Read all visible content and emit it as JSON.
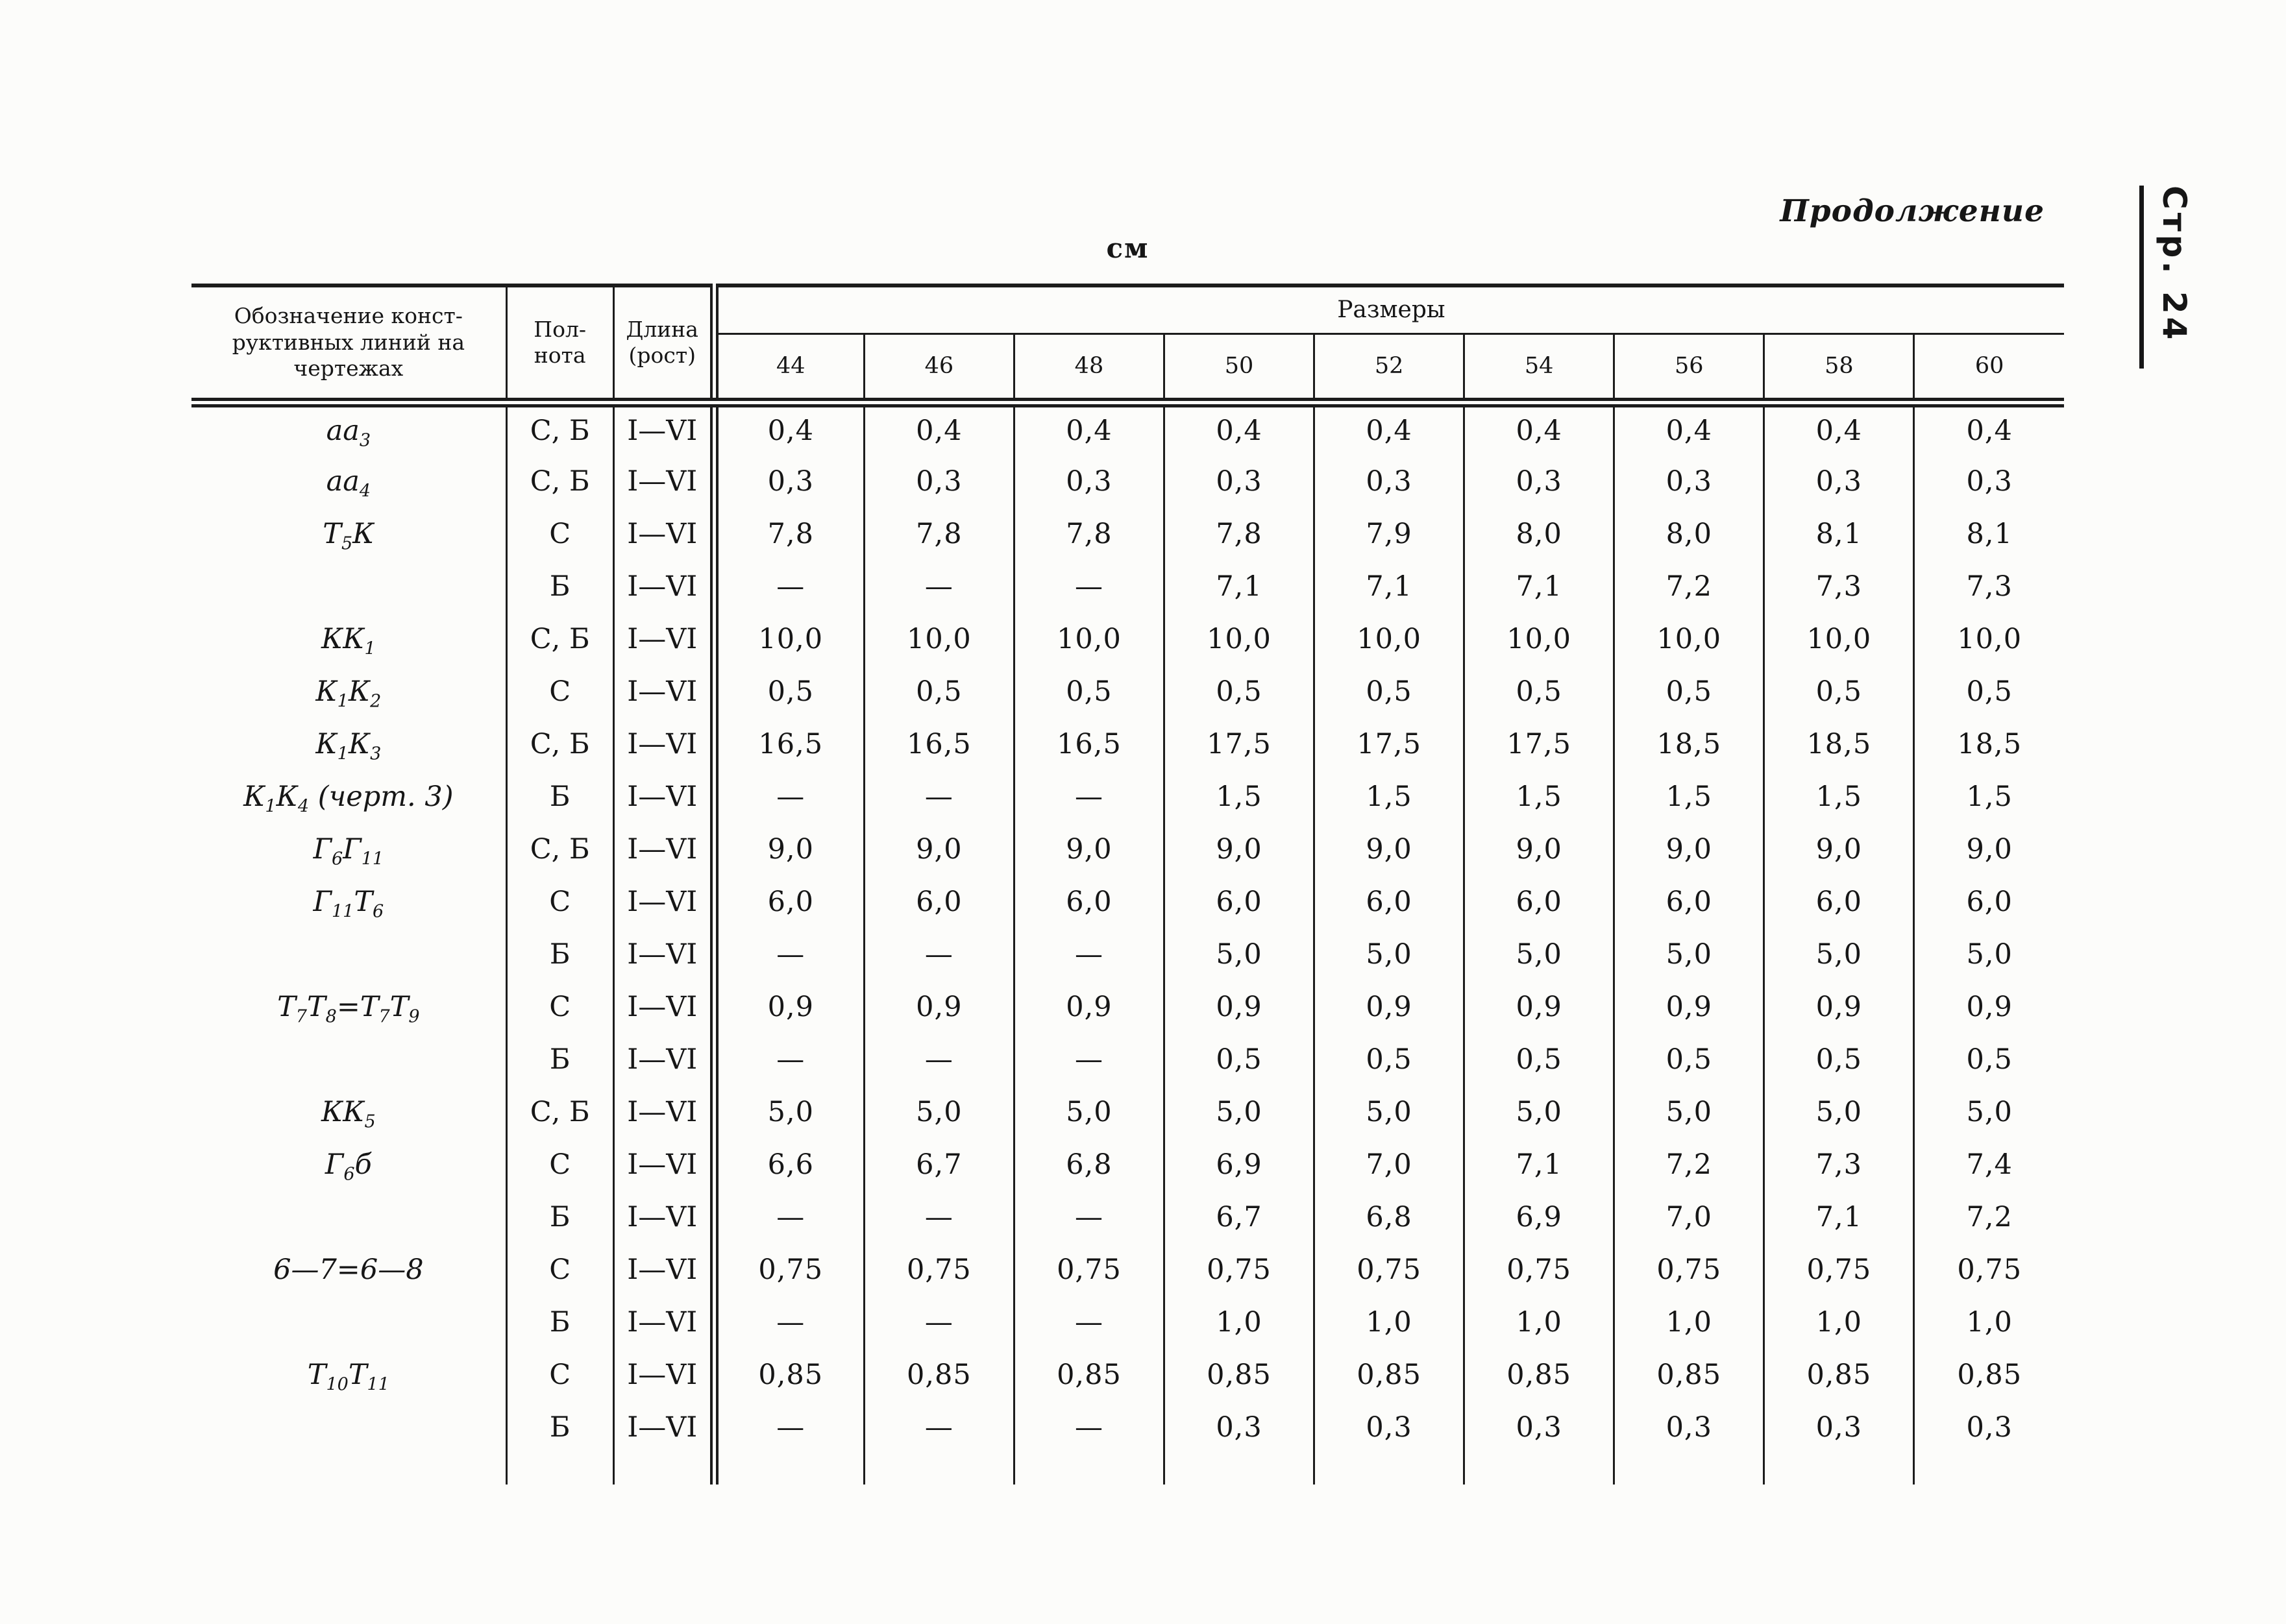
{
  "page": {
    "continuation_label": "Продолжение",
    "page_number_label": "Стр. 24",
    "unit_label": "см"
  },
  "table": {
    "header": {
      "designation": "Обозначение конст-\nруктивных линий на\nчертежах",
      "fullness": "Пол-\nнота",
      "length": "Длина\n(рост)",
      "sizes_title": "Размеры",
      "sizes": [
        "44",
        "46",
        "48",
        "50",
        "52",
        "54",
        "56",
        "58",
        "60"
      ]
    },
    "rows": [
      {
        "designation": "аа{3}",
        "fullness": "С, Б",
        "length": "I—VI",
        "values": [
          "0,4",
          "0,4",
          "0,4",
          "0,4",
          "0,4",
          "0,4",
          "0,4",
          "0,4",
          "0,4"
        ]
      },
      {
        "designation": "аа{4}",
        "fullness": "С, Б",
        "length": "I—VI",
        "values": [
          "0,3",
          "0,3",
          "0,3",
          "0,3",
          "0,3",
          "0,3",
          "0,3",
          "0,3",
          "0,3"
        ]
      },
      {
        "designation": "Т{5}К",
        "fullness": "С",
        "length": "I—VI",
        "values": [
          "7,8",
          "7,8",
          "7,8",
          "7,8",
          "7,9",
          "8,0",
          "8,0",
          "8,1",
          "8,1"
        ]
      },
      {
        "designation": "",
        "fullness": "Б",
        "length": "I—VI",
        "values": [
          "—",
          "—",
          "—",
          "7,1",
          "7,1",
          "7,1",
          "7,2",
          "7,3",
          "7,3"
        ]
      },
      {
        "designation": "КК{1}",
        "fullness": "С, Б",
        "length": "I—VI",
        "values": [
          "10,0",
          "10,0",
          "10,0",
          "10,0",
          "10,0",
          "10,0",
          "10,0",
          "10,0",
          "10,0"
        ]
      },
      {
        "designation": "К{1}К{2}",
        "fullness": "С",
        "length": "I—VI",
        "values": [
          "0,5",
          "0,5",
          "0,5",
          "0,5",
          "0,5",
          "0,5",
          "0,5",
          "0,5",
          "0,5"
        ]
      },
      {
        "designation": "К{1}К{3}",
        "fullness": "С, Б",
        "length": "I—VI",
        "values": [
          "16,5",
          "16,5",
          "16,5",
          "17,5",
          "17,5",
          "17,5",
          "18,5",
          "18,5",
          "18,5"
        ]
      },
      {
        "designation": "К{1}К{4} (черт. 3)",
        "fullness": "Б",
        "length": "I—VI",
        "values": [
          "—",
          "—",
          "—",
          "1,5",
          "1,5",
          "1,5",
          "1,5",
          "1,5",
          "1,5"
        ]
      },
      {
        "designation": "Г{6}Г{11}",
        "fullness": "С, Б",
        "length": "I—VI",
        "values": [
          "9,0",
          "9,0",
          "9,0",
          "9,0",
          "9,0",
          "9,0",
          "9,0",
          "9,0",
          "9,0"
        ]
      },
      {
        "designation": "Г{11}Т{6}",
        "fullness": "С",
        "length": "I—VI",
        "values": [
          "6,0",
          "6,0",
          "6,0",
          "6,0",
          "6,0",
          "6,0",
          "6,0",
          "6,0",
          "6,0"
        ]
      },
      {
        "designation": "",
        "fullness": "Б",
        "length": "I—VI",
        "values": [
          "—",
          "—",
          "—",
          "5,0",
          "5,0",
          "5,0",
          "5,0",
          "5,0",
          "5,0"
        ]
      },
      {
        "designation": "Т{7}Т{8}=Т{7}Т{9}",
        "fullness": "С",
        "length": "I—VI",
        "values": [
          "0,9",
          "0,9",
          "0,9",
          "0,9",
          "0,9",
          "0,9",
          "0,9",
          "0,9",
          "0,9"
        ]
      },
      {
        "designation": "",
        "fullness": "Б",
        "length": "I—VI",
        "values": [
          "—",
          "—",
          "—",
          "0,5",
          "0,5",
          "0,5",
          "0,5",
          "0,5",
          "0,5"
        ]
      },
      {
        "designation": "КК{5}",
        "fullness": "С, Б",
        "length": "I—VI",
        "values": [
          "5,0",
          "5,0",
          "5,0",
          "5,0",
          "5,0",
          "5,0",
          "5,0",
          "5,0",
          "5,0"
        ]
      },
      {
        "designation": "Г{6}б",
        "fullness": "С",
        "length": "I—VI",
        "values": [
          "6,6",
          "6,7",
          "6,8",
          "6,9",
          "7,0",
          "7,1",
          "7,2",
          "7,3",
          "7,4"
        ]
      },
      {
        "designation": "",
        "fullness": "Б",
        "length": "I—VI",
        "values": [
          "—",
          "—",
          "—",
          "6,7",
          "6,8",
          "6,9",
          "7,0",
          "7,1",
          "7,2"
        ]
      },
      {
        "designation": "6—7=6—8",
        "fullness": "С",
        "length": "I—VI",
        "values": [
          "0,75",
          "0,75",
          "0,75",
          "0,75",
          "0,75",
          "0,75",
          "0,75",
          "0,75",
          "0,75"
        ]
      },
      {
        "designation": "",
        "fullness": "Б",
        "length": "I—VI",
        "values": [
          "—",
          "—",
          "—",
          "1,0",
          "1,0",
          "1,0",
          "1,0",
          "1,0",
          "1,0"
        ]
      },
      {
        "designation": "Т{10}Т{11}",
        "fullness": "С",
        "length": "I—VI",
        "values": [
          "0,85",
          "0,85",
          "0,85",
          "0,85",
          "0,85",
          "0,85",
          "0,85",
          "0,85",
          "0,85"
        ]
      },
      {
        "designation": "",
        "fullness": "Б",
        "length": "I—VI",
        "values": [
          "—",
          "—",
          "—",
          "0,3",
          "0,3",
          "0,3",
          "0,3",
          "0,3",
          "0,3"
        ]
      }
    ]
  }
}
